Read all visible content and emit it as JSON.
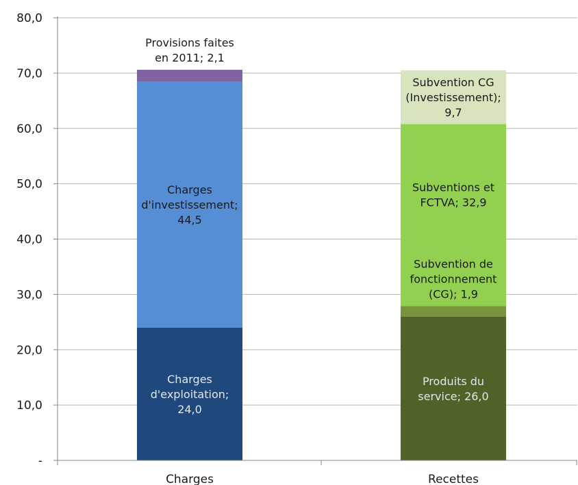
{
  "chart_data": {
    "type": "bar",
    "stacked": true,
    "categories": [
      "Charges",
      "Recettes"
    ],
    "ylim": [
      0,
      80
    ],
    "yticks": [
      {
        "value": 0,
        "label": "-"
      },
      {
        "value": 10,
        "label": "10,0"
      },
      {
        "value": 20,
        "label": "20,0"
      },
      {
        "value": 30,
        "label": "30,0"
      },
      {
        "value": 40,
        "label": "40,0"
      },
      {
        "value": 50,
        "label": "50,0"
      },
      {
        "value": 60,
        "label": "60,0"
      },
      {
        "value": 70,
        "label": "70,0"
      },
      {
        "value": 80,
        "label": "80,0"
      }
    ],
    "grid": true,
    "title": "",
    "xlabel": "",
    "ylabel": "",
    "segments": [
      {
        "category": "Charges",
        "value": 24.0,
        "color": "#1f497d",
        "label_lines": [
          "Charges",
          "d'exploitation;",
          "24,0"
        ],
        "label_color": "#e6e6e6",
        "label_position": "inside"
      },
      {
        "category": "Charges",
        "value": 44.5,
        "color": "#558ed5",
        "label_lines": [
          "Charges",
          "d'investissement;",
          "44,5"
        ],
        "label_color": "#1a1a1a",
        "label_position": "inside"
      },
      {
        "category": "Charges",
        "value": 2.1,
        "color": "#8064a2",
        "label_lines": [
          "Provisions faites",
          "en 2011;  2,1"
        ],
        "label_color": "#1a1a1a",
        "label_position": "above"
      },
      {
        "category": "Recettes",
        "value": 26.0,
        "color": "#4f6228",
        "label_lines": [
          "Produits du",
          "service;  26,0"
        ],
        "label_color": "#e6e6e6",
        "label_position": "inside"
      },
      {
        "category": "Recettes",
        "value": 1.9,
        "color": "#77933c",
        "label_lines": [
          "Subvention de",
          "fonctionnement",
          "(CG);  1,9"
        ],
        "label_color": "#1a1a1a",
        "label_position": "above"
      },
      {
        "category": "Recettes",
        "value": 32.9,
        "color": "#92d050",
        "label_lines": [
          "Subventions et",
          "FCTVA;  32,9"
        ],
        "label_color": "#1a1a1a",
        "label_position": "inside-upper"
      },
      {
        "category": "Recettes",
        "value": 9.7,
        "color": "#d7e4bd",
        "label_lines": [
          "Subvention CG",
          "(Investissement);",
          "9,7"
        ],
        "label_color": "#1a1a1a",
        "label_position": "inside"
      }
    ]
  }
}
